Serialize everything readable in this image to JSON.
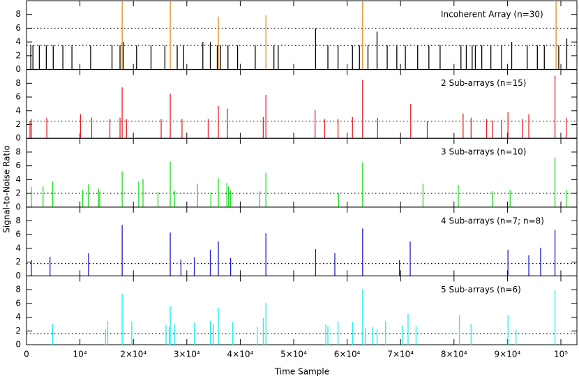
{
  "chart_data": [
    {
      "type": "spike",
      "title": "Incoherent Array (n=30)",
      "xlim": [
        0,
        103000
      ],
      "ylim": [
        0,
        10
      ],
      "yticks": [
        0,
        2,
        4,
        6,
        8
      ],
      "thresholds": [
        3.5,
        6
      ],
      "series": [
        {
          "color": "#000000",
          "x": [
            800,
            1200,
            2400,
            3700,
            5000,
            6800,
            8500,
            12000,
            16000,
            17500,
            18100,
            20600,
            23300,
            25900,
            28200,
            29400,
            33000,
            34400,
            35700,
            36300,
            37700,
            39500,
            42800,
            46300,
            47100,
            54100,
            56400,
            58300,
            61000,
            62300,
            63900,
            65600,
            67500,
            69300,
            70900,
            73200,
            75300,
            77400,
            81300,
            82300,
            83400,
            84000,
            85200,
            86900,
            88900,
            90800,
            93700,
            95600,
            96900,
            99600,
            101100
          ],
          "values": [
            3.5,
            3.5,
            3.5,
            3.5,
            3.5,
            3.5,
            3.5,
            3.5,
            3.5,
            3.5,
            4,
            3.5,
            3.5,
            3.5,
            3.5,
            3.5,
            4,
            4,
            3.5,
            3.5,
            3.5,
            3.5,
            3.5,
            3.5,
            3.5,
            6,
            3.5,
            3.5,
            3.5,
            3.5,
            3.5,
            5.5,
            3.5,
            3.5,
            3.5,
            3.5,
            3.5,
            3.5,
            3.5,
            3.5,
            3.5,
            3.5,
            3.5,
            3.5,
            3.5,
            4,
            3.5,
            3.5,
            3.5,
            3.5,
            4.5
          ]
        },
        {
          "color": "#e08a1e",
          "x": [
            17900,
            26900,
            35900,
            44800,
            62900,
            99100
          ],
          "values": [
            9.9,
            9.9,
            7.7,
            7.9,
            9.9,
            9.9
          ]
        }
      ]
    },
    {
      "type": "spike",
      "title": "2 Sub-arrays (n=15)",
      "xlim": [
        0,
        103000
      ],
      "ylim": [
        0,
        10
      ],
      "yticks": [
        0,
        2,
        4,
        6,
        8
      ],
      "thresholds": [
        2.5
      ],
      "series": [
        {
          "color": "#e8202a",
          "x": [
            650,
            900,
            3800,
            10100,
            12200,
            15600,
            17500,
            17900,
            18700,
            25200,
            26900,
            29100,
            34000,
            35900,
            37600,
            44300,
            44800,
            54000,
            55800,
            58300,
            61000,
            62900,
            65700,
            71900,
            75000,
            81700,
            83200,
            86100,
            87200,
            88900,
            90100,
            92800,
            94000,
            98900,
            101000
          ],
          "values": [
            2.5,
            2.8,
            3,
            3.5,
            3,
            2.8,
            3,
            7.4,
            2.8,
            2.8,
            6.5,
            2.8,
            2.8,
            4.7,
            4.3,
            3.1,
            6.3,
            4.1,
            2.8,
            2.8,
            3.1,
            8.5,
            3,
            5,
            2.5,
            3.6,
            3,
            2.8,
            2.6,
            2.7,
            3.8,
            2.8,
            3.5,
            9.1,
            3
          ]
        }
      ]
    },
    {
      "type": "spike",
      "title": "3 Sub-arrays (n=10)",
      "ylabel": "Signal-to-Noise Ratio",
      "xlim": [
        0,
        103000
      ],
      "ylim": [
        0,
        10
      ],
      "yticks": [
        0,
        2,
        4,
        6,
        8
      ],
      "thresholds": [
        2
      ],
      "series": [
        {
          "color": "#22dd22",
          "x": [
            900,
            3100,
            4900,
            10500,
            11600,
            13500,
            13700,
            17900,
            21000,
            21800,
            24600,
            26900,
            27700,
            32000,
            34500,
            35900,
            37500,
            37800,
            38200,
            43600,
            44800,
            58400,
            62900,
            74200,
            80800,
            87200,
            90500,
            98900,
            101000
          ],
          "values": [
            2.9,
            3,
            3.7,
            2.5,
            3.3,
            2.7,
            2.3,
            5.2,
            3.7,
            4.1,
            2.2,
            6.6,
            2.4,
            3.4,
            2.1,
            4.2,
            3.5,
            3,
            2.4,
            2.3,
            5,
            2,
            6.5,
            3.4,
            3.2,
            2.3,
            2.5,
            7.2,
            2.5
          ]
        }
      ]
    },
    {
      "type": "spike",
      "title": "4 Sub-arrays (n=7; n=8)",
      "xlim": [
        0,
        103000
      ],
      "ylim": [
        0,
        10
      ],
      "yticks": [
        0,
        2,
        4,
        6,
        8
      ],
      "thresholds": [
        1.8
      ],
      "series": [
        {
          "color": "#1a1acc",
          "x": [
            900,
            4400,
            11600,
            17900,
            26900,
            28900,
            31400,
            34400,
            35900,
            38200,
            44800,
            54100,
            57700,
            62900,
            69800,
            71800,
            90100,
            94000,
            96200,
            98900
          ],
          "values": [
            2.3,
            2.8,
            3.3,
            7.4,
            6.3,
            2.4,
            2.7,
            3.8,
            5,
            2.6,
            6.2,
            3.9,
            3.3,
            6.9,
            2.3,
            5,
            3.8,
            3,
            4.1,
            6.7
          ]
        }
      ]
    },
    {
      "type": "spike",
      "title": "5 Sub-arrays (n=6)",
      "xlabel": "Time Sample",
      "xlim": [
        0,
        103000
      ],
      "ylim": [
        0,
        10
      ],
      "yticks": [
        0,
        2,
        4,
        6,
        8
      ],
      "thresholds": [
        1.6
      ],
      "xticks": [
        0,
        {
          "value": 10000,
          "label": "10⁴"
        },
        {
          "value": 20000,
          "label": "2×10⁴"
        },
        {
          "value": 30000,
          "label": "3×10⁴"
        },
        {
          "value": 40000,
          "label": "4×10⁴"
        },
        {
          "value": 50000,
          "label": "5×10⁴"
        },
        {
          "value": 60000,
          "label": "6×10⁴"
        },
        {
          "value": 70000,
          "label": "7×10⁴"
        },
        {
          "value": 80000,
          "label": "8×10⁴"
        },
        {
          "value": 90000,
          "label": "9×10⁴"
        },
        {
          "value": 100000,
          "label": "10⁵"
        }
      ],
      "series": [
        {
          "color": "#22eeee",
          "x": [
            4900,
            14800,
            15200,
            17900,
            19700,
            26100,
            26700,
            26900,
            27700,
            31400,
            34400,
            35000,
            35900,
            38600,
            43200,
            44300,
            44800,
            56000,
            56400,
            58300,
            61000,
            62900,
            63400,
            64800,
            65600,
            67200,
            70300,
            71400,
            72900,
            81000,
            83200,
            90100,
            91600,
            98900
          ],
          "values": [
            3,
            2.3,
            3.4,
            7.4,
            3.4,
            2.9,
            2.6,
            5.6,
            3,
            3.2,
            3.5,
            3,
            5.4,
            3.3,
            2.6,
            3.9,
            6.1,
            3,
            2.7,
            3.4,
            3.3,
            8.1,
            2.4,
            2.6,
            2.3,
            3.4,
            2.8,
            4.5,
            2.7,
            4.3,
            3,
            4.3,
            2.2,
            7.9
          ]
        }
      ]
    }
  ]
}
